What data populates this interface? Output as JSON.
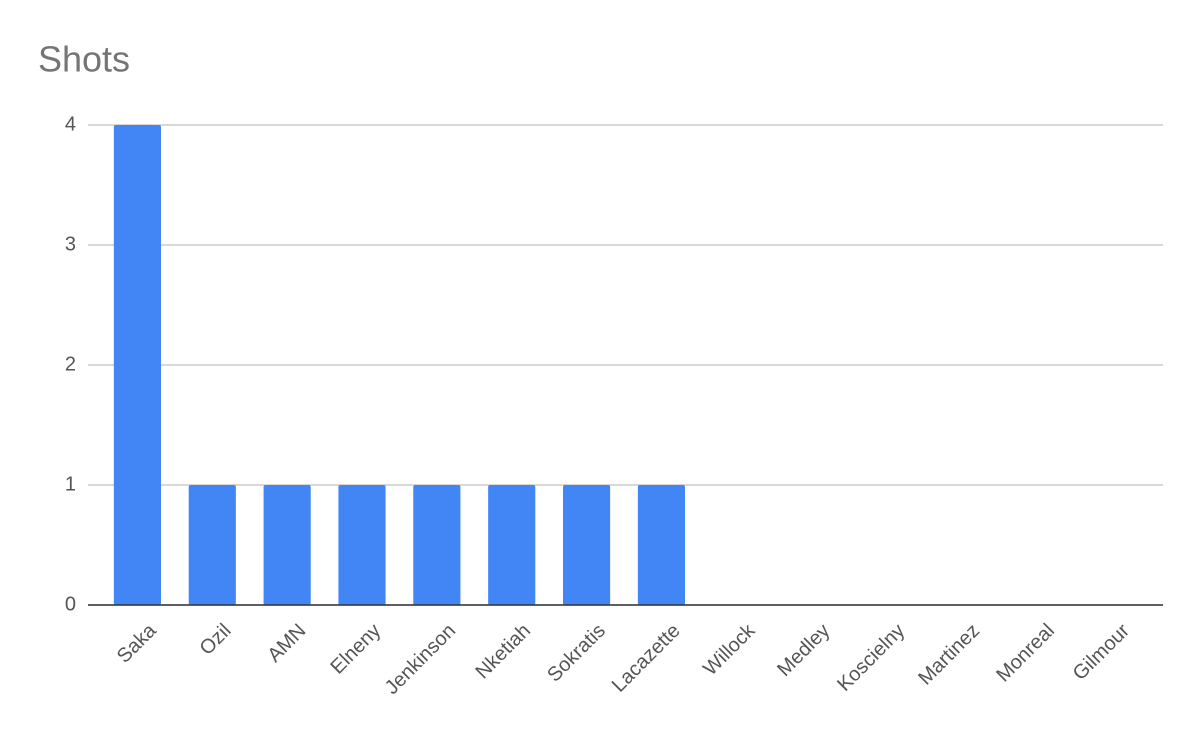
{
  "chart_data": {
    "type": "bar",
    "title": "Shots",
    "categories": [
      "Saka",
      "Ozil",
      "AMN",
      "Elneny",
      "Jenkinson",
      "Nketiah",
      "Sokratis",
      "Lacazette",
      "Willock",
      "Medley",
      "Koscielny",
      "Martinez",
      "Monreal",
      "Gilmour"
    ],
    "values": [
      4,
      1,
      1,
      1,
      1,
      1,
      1,
      1,
      0,
      0,
      0,
      0,
      0,
      0
    ],
    "color": "#4285f4",
    "ylim": [
      0,
      4
    ],
    "yticks": [
      0,
      1,
      2,
      3,
      4
    ],
    "grid": true
  }
}
